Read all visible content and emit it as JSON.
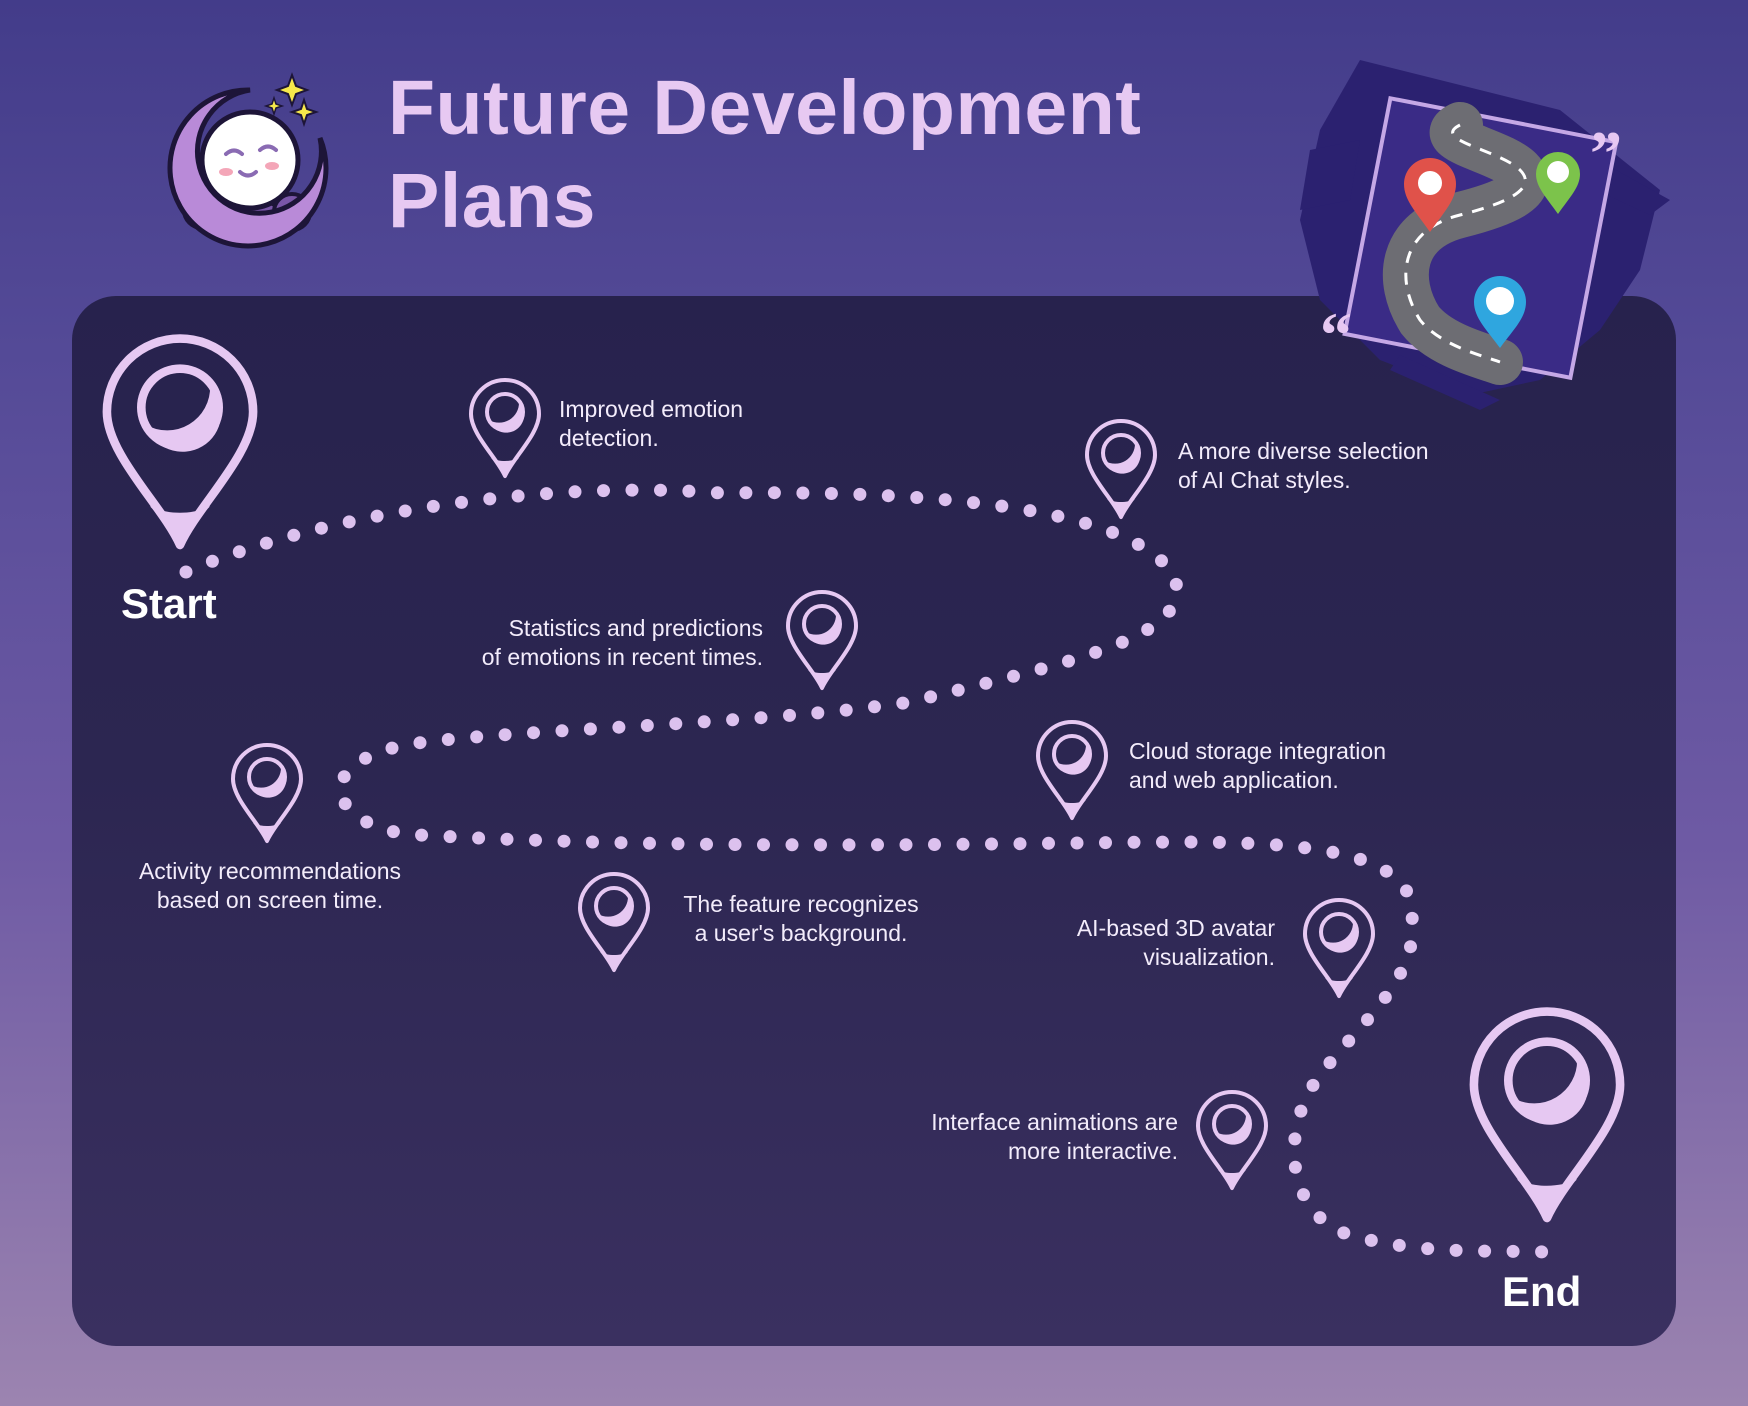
{
  "title": {
    "line1": "Future Development",
    "line2": "Plans"
  },
  "route": {
    "start_label": "Start",
    "end_label": "End",
    "milestones": [
      {
        "text": "Improved emotion\ndetection."
      },
      {
        "text": "A more diverse selection\nof AI Chat styles."
      },
      {
        "text": "Statistics and predictions\nof emotions in recent times."
      },
      {
        "text": "Activity recommendations\nbased on screen time."
      },
      {
        "text": "Cloud storage integration\nand web application."
      },
      {
        "text": "The feature recognizes\na user's background."
      },
      {
        "text": "AI-based 3D avatar\nvisualization."
      },
      {
        "text": "Interface animations are\nmore interactive."
      }
    ]
  },
  "decorations": {
    "left_logo": "sleeping-moon-icon",
    "right_illustration": "road-map-pins-icon"
  },
  "colors": {
    "title": "#e7c9f2",
    "pin": "#e6c8f2",
    "route_dots": "#dcc1ee",
    "panel": "#29234f",
    "label_text": "#f3ecfb",
    "map_pin_red": "#e0524a",
    "map_pin_green": "#7cc34b",
    "map_pin_blue": "#2fa6df"
  }
}
